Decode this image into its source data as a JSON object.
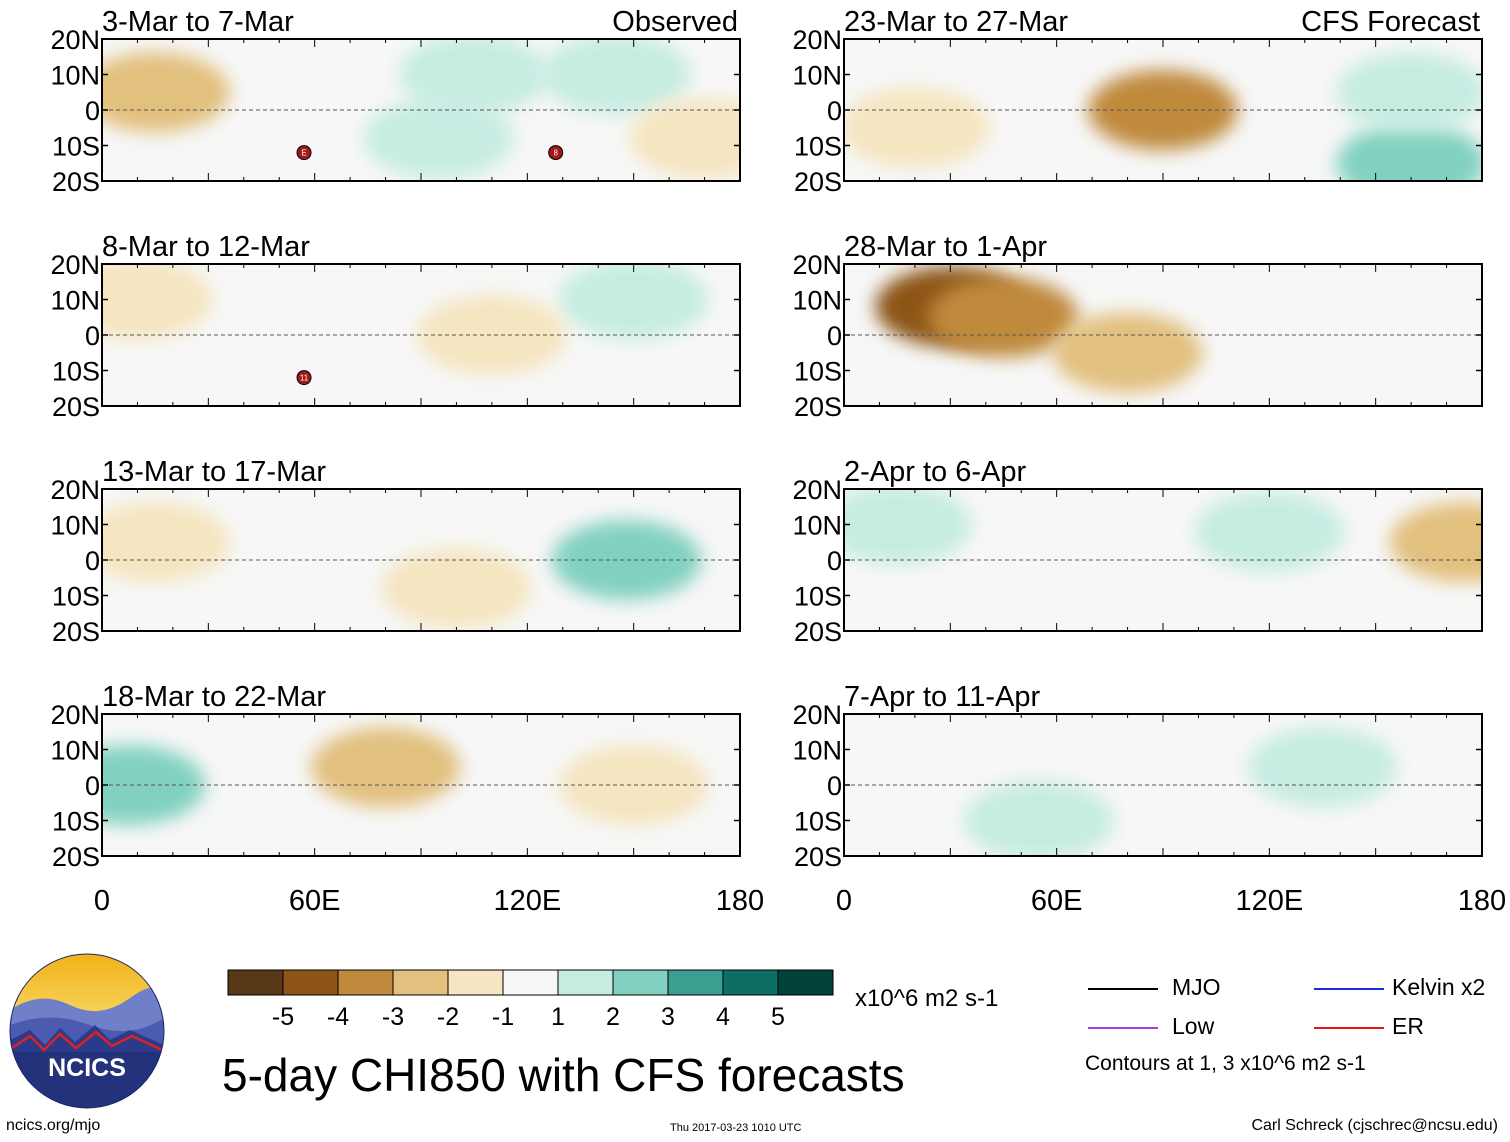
{
  "title": "5-day CHI850 with CFS forecasts",
  "site": "ncics.org/mjo",
  "timestamp": "Thu 2017-03-23 1010 UTC",
  "author": "Carl Schreck (cjschrec@ncsu.edu)",
  "logo_text": "NCICS",
  "column_labels": {
    "observed": "Observed",
    "forecast": "CFS Forecast"
  },
  "axis": {
    "lat_ticks": [
      "20N",
      "10N",
      "0",
      "10S",
      "20S"
    ],
    "lon_ticks": [
      "0",
      "60E",
      "120E",
      "180"
    ]
  },
  "panels": [
    {
      "title": "3-Mar to 7-Mar",
      "kind": "observed",
      "markers": [
        "E",
        "8"
      ]
    },
    {
      "title": "8-Mar to 12-Mar",
      "kind": "observed",
      "markers": [
        "11"
      ]
    },
    {
      "title": "13-Mar to 17-Mar",
      "kind": "observed",
      "markers": []
    },
    {
      "title": "18-Mar to 22-Mar",
      "kind": "observed",
      "markers": []
    },
    {
      "title": "23-Mar to 27-Mar",
      "kind": "forecast",
      "markers": []
    },
    {
      "title": "28-Mar to 1-Apr",
      "kind": "forecast",
      "markers": []
    },
    {
      "title": "2-Apr to 6-Apr",
      "kind": "forecast",
      "markers": []
    },
    {
      "title": "7-Apr to 11-Apr",
      "kind": "forecast",
      "markers": []
    }
  ],
  "colorbar": {
    "tick_labels": [
      "-5",
      "-4",
      "-3",
      "-2",
      "-1",
      "1",
      "2",
      "3",
      "4",
      "5"
    ],
    "colors": [
      "#593818",
      "#8c5416",
      "#c08a3c",
      "#e2c07e",
      "#f5e5c0",
      "#f7f7f7",
      "#c6ece2",
      "#82d1c0",
      "#3a9e90",
      "#0d6e63",
      "#01423b"
    ],
    "units": "x10^6 m2 s-1"
  },
  "legend": {
    "items": [
      {
        "label": "MJO",
        "color": "#000000"
      },
      {
        "label": "Kelvin x2",
        "color": "#1a2cd8"
      },
      {
        "label": "Low",
        "color": "#a340e0"
      },
      {
        "label": "ER",
        "color": "#e3161b"
      }
    ],
    "contour_note": "Contours at 1, 3 x10^6 m2 s-1"
  },
  "chart_data": {
    "type": "heatmap",
    "variable": "5-day CHI850 anomaly",
    "units": "x10^6 m2 s-1",
    "lon_range": [
      0,
      180
    ],
    "lat_range": [
      -20,
      20
    ],
    "color_levels": [
      -5,
      -4,
      -3,
      -2,
      -1,
      1,
      2,
      3,
      4,
      5
    ],
    "contour_levels": [
      1,
      3
    ],
    "panels": [
      {
        "title": "3-Mar to 7-Mar",
        "source": "Observed",
        "anomaly_regions": [
          {
            "lon": 15,
            "lat": 5,
            "value": -2
          },
          {
            "lon": 105,
            "lat": 10,
            "value": 2
          },
          {
            "lon": 95,
            "lat": -8,
            "value": 2
          },
          {
            "lon": 145,
            "lat": 10,
            "value": 2
          },
          {
            "lon": 170,
            "lat": -8,
            "value": -1.5
          }
        ]
      },
      {
        "title": "8-Mar to 12-Mar",
        "source": "Observed",
        "anomaly_regions": [
          {
            "lon": 150,
            "lat": 10,
            "value": 1.5
          },
          {
            "lon": 10,
            "lat": 10,
            "value": -1.5
          },
          {
            "lon": 110,
            "lat": 0,
            "value": -1.5
          }
        ]
      },
      {
        "title": "13-Mar to 17-Mar",
        "source": "Observed",
        "anomaly_regions": [
          {
            "lon": 148,
            "lat": 0,
            "value": 2.5
          },
          {
            "lon": 100,
            "lat": -8,
            "value": -1.5
          },
          {
            "lon": 15,
            "lat": 5,
            "value": -1.5
          }
        ]
      },
      {
        "title": "18-Mar to 22-Mar",
        "source": "Observed",
        "anomaly_regions": [
          {
            "lon": 8,
            "lat": 0,
            "value": 3
          },
          {
            "lon": 80,
            "lat": 5,
            "value": -2
          },
          {
            "lon": 150,
            "lat": 0,
            "value": -1.5
          }
        ]
      },
      {
        "title": "23-Mar to 27-Mar",
        "source": "CFS Forecast",
        "anomaly_regions": [
          {
            "lon": 90,
            "lat": 0,
            "value": -3
          },
          {
            "lon": 160,
            "lat": -15,
            "value": 3
          },
          {
            "lon": 160,
            "lat": 5,
            "value": 1.5
          },
          {
            "lon": 20,
            "lat": -5,
            "value": -1.5
          }
        ]
      },
      {
        "title": "28-Mar to 1-Apr",
        "source": "CFS Forecast",
        "anomaly_regions": [
          {
            "lon": 30,
            "lat": 8,
            "value": -4.5
          },
          {
            "lon": 45,
            "lat": 5,
            "value": -3
          },
          {
            "lon": 80,
            "lat": -5,
            "value": -2
          }
        ]
      },
      {
        "title": "2-Apr to 6-Apr",
        "source": "CFS Forecast",
        "anomaly_regions": [
          {
            "lon": 175,
            "lat": 5,
            "value": -2
          },
          {
            "lon": 120,
            "lat": 8,
            "value": 1.5
          },
          {
            "lon": 15,
            "lat": 10,
            "value": 1.5
          }
        ]
      },
      {
        "title": "7-Apr to 11-Apr",
        "source": "CFS Forecast",
        "anomaly_regions": [
          {
            "lon": 135,
            "lat": 5,
            "value": 1.5
          },
          {
            "lon": 55,
            "lat": -10,
            "value": 1.5
          }
        ]
      }
    ]
  }
}
